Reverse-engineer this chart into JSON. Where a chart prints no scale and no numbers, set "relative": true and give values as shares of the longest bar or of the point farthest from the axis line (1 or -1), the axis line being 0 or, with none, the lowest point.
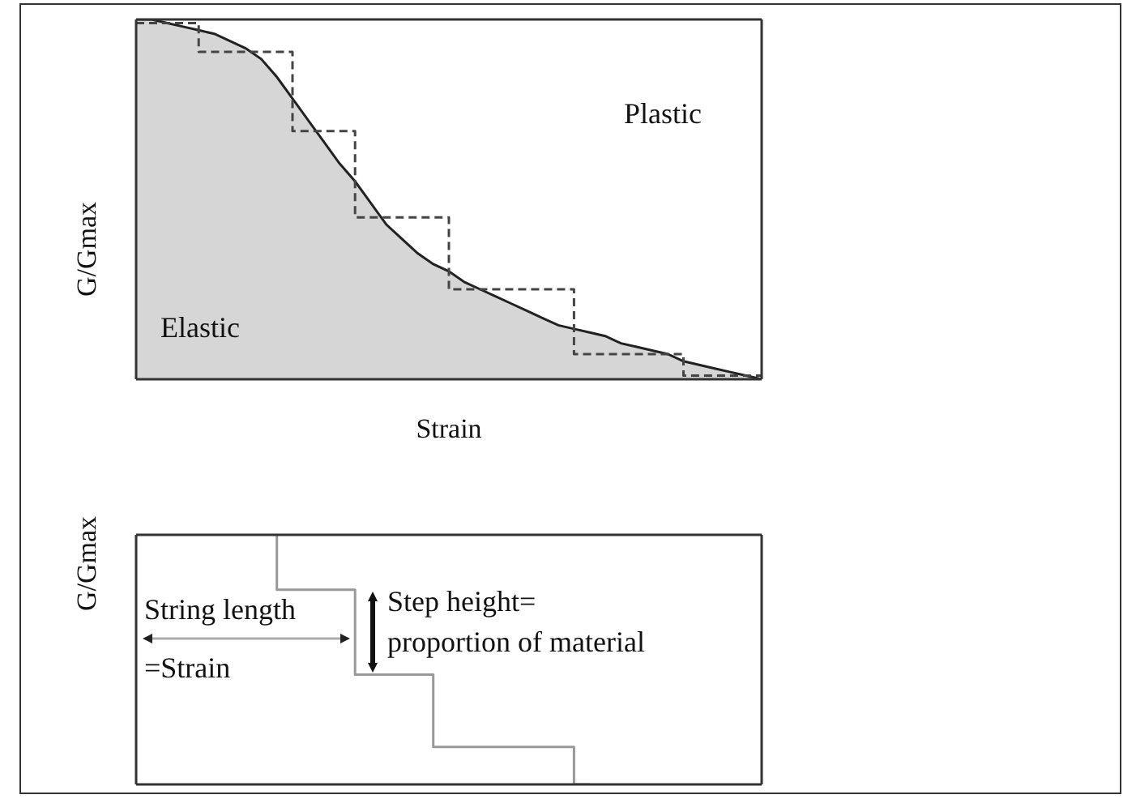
{
  "chart_data": [
    {
      "type": "area",
      "xlabel": "Strain",
      "ylabel": "G/Gmax",
      "relative": true,
      "legend": false,
      "categories": [
        null,
        null,
        null,
        null,
        null,
        null,
        null,
        null,
        null,
        null,
        null,
        null,
        null,
        null,
        null,
        null,
        null,
        null,
        null,
        null,
        null,
        null,
        null,
        null,
        null,
        null,
        null,
        null,
        null,
        null,
        null,
        null,
        null,
        null,
        null,
        null,
        null,
        null,
        null,
        null,
        null
      ],
      "series": [
        {
          "color": "#d6d6d6",
          "values": [
            1.0,
            1.0,
            0.99,
            0.98,
            0.97,
            0.96,
            0.94,
            0.92,
            0.89,
            0.84,
            0.78,
            0.72,
            0.66,
            0.6,
            0.55,
            0.49,
            0.43,
            0.39,
            0.35,
            0.32,
            0.3,
            0.27,
            0.25,
            0.23,
            0.21,
            0.19,
            0.17,
            0.15,
            0.14,
            0.13,
            0.12,
            0.1,
            0.09,
            0.08,
            0.07,
            0.05,
            0.04,
            0.03,
            0.02,
            0.01,
            0.0
          ]
        },
        {
          "type": "step",
          "color": "#444444",
          "line_style": "dashed",
          "values": [
            0.99,
            0.99,
            0.99,
            0.99,
            0.99,
            0.91,
            0.91,
            0.91,
            0.91,
            0.91,
            0.91,
            0.69,
            0.69,
            0.69,
            0.69,
            0.45,
            0.45,
            0.45,
            0.45,
            0.45,
            0.45,
            0.25,
            0.25,
            0.25,
            0.25,
            0.25,
            0.25,
            0.25,
            0.25,
            0.07,
            0.07,
            0.07,
            0.07,
            0.07,
            0.07,
            0.07,
            0.01,
            0.01,
            0.01,
            0.01,
            0.01
          ]
        }
      ],
      "annotations": [
        "Plastic",
        "Elastic"
      ]
    },
    {
      "type": "step",
      "ylabel": "G/Gmax",
      "relative": true,
      "legend": false,
      "categories": [
        null,
        null,
        null,
        null,
        null,
        null,
        null,
        null,
        null,
        null,
        null,
        null,
        null,
        null,
        null,
        null,
        null,
        null,
        null,
        null,
        null,
        null,
        null,
        null,
        null,
        null,
        null,
        null,
        null,
        null,
        null,
        null,
        null,
        null,
        null,
        null,
        null,
        null,
        null,
        null,
        null
      ],
      "series": [
        {
          "color": "#999999",
          "values": [
            null,
            null,
            null,
            null,
            null,
            null,
            null,
            null,
            null,
            1.0,
            null,
            null,
            null,
            null,
            0.78,
            null,
            null,
            null,
            null,
            0.44,
            null,
            null,
            null,
            null,
            null,
            null,
            null,
            null,
            0.15,
            0.0,
            null,
            null,
            null,
            null,
            null,
            null,
            null,
            null,
            null,
            null,
            null
          ]
        }
      ],
      "annotations": [
        "String length",
        "=Strain",
        "Step height=",
        "proportion of material"
      ]
    }
  ]
}
